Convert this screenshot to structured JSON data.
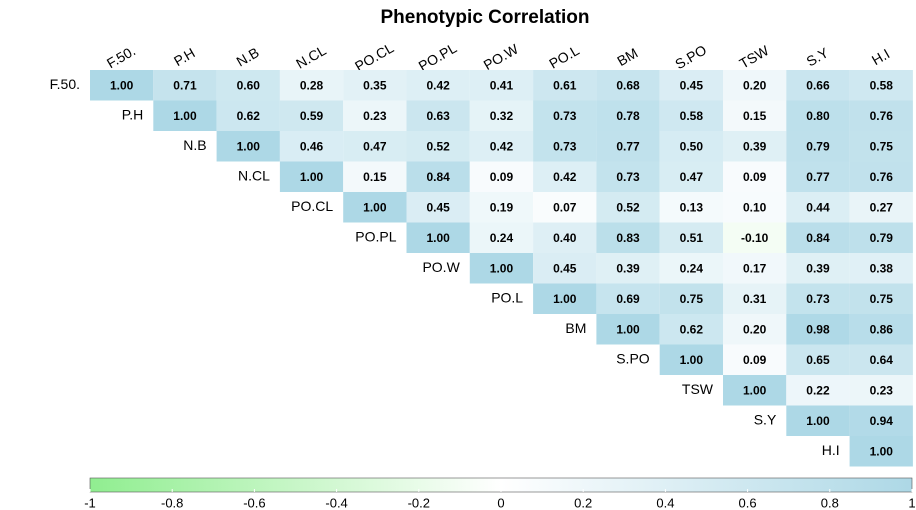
{
  "chart_data": {
    "type": "heatmap",
    "title": "Phenotypic Correlation",
    "categories": [
      "F.50.",
      "P.H",
      "N.B",
      "N.CL",
      "PO.CL",
      "PO.PL",
      "PO.W",
      "PO.L",
      "BM",
      "S.PO",
      "TSW",
      "S.Y",
      "H.I"
    ],
    "values": [
      [
        1,
        0.71,
        0.6,
        0.28,
        0.35,
        0.42,
        0.41,
        0.61,
        0.68,
        0.45,
        0.2,
        0.66,
        0.58
      ],
      [
        null,
        1,
        0.62,
        0.59,
        0.23,
        0.63,
        0.32,
        0.73,
        0.78,
        0.58,
        0.15,
        0.8,
        0.76
      ],
      [
        null,
        null,
        1,
        0.46,
        0.47,
        0.52,
        0.42,
        0.73,
        0.77,
        0.5,
        0.39,
        0.79,
        0.75
      ],
      [
        null,
        null,
        null,
        1,
        0.15,
        0.84,
        0.09,
        0.42,
        0.73,
        0.47,
        0.09,
        0.77,
        0.76
      ],
      [
        null,
        null,
        null,
        null,
        1,
        0.45,
        0.19,
        0.07,
        0.52,
        0.13,
        0.1,
        0.44,
        0.27
      ],
      [
        null,
        null,
        null,
        null,
        null,
        1,
        0.24,
        0.4,
        0.83,
        0.51,
        -0.1,
        0.84,
        0.79
      ],
      [
        null,
        null,
        null,
        null,
        null,
        null,
        1,
        0.45,
        0.39,
        0.24,
        0.17,
        0.39,
        0.38
      ],
      [
        null,
        null,
        null,
        null,
        null,
        null,
        null,
        1,
        0.69,
        0.75,
        0.31,
        0.73,
        0.75
      ],
      [
        null,
        null,
        null,
        null,
        null,
        null,
        null,
        null,
        1,
        0.62,
        0.2,
        0.98,
        0.86
      ],
      [
        null,
        null,
        null,
        null,
        null,
        null,
        null,
        null,
        null,
        1,
        0.09,
        0.65,
        0.64
      ],
      [
        null,
        null,
        null,
        null,
        null,
        null,
        null,
        null,
        null,
        null,
        1,
        0.22,
        0.23
      ],
      [
        null,
        null,
        null,
        null,
        null,
        null,
        null,
        null,
        null,
        null,
        null,
        1,
        0.94
      ],
      [
        null,
        null,
        null,
        null,
        null,
        null,
        null,
        null,
        null,
        null,
        null,
        null,
        1
      ]
    ],
    "value_labels": [
      [
        "1.00",
        "0.71",
        "0.60",
        "0.28",
        "0.35",
        "0.42",
        "0.41",
        "0.61",
        "0.68",
        "0.45",
        "0.20",
        "0.66",
        "0.58"
      ],
      [
        null,
        "1.00",
        "0.62",
        "0.59",
        "0.23",
        "0.63",
        "0.32",
        "0.73",
        "0.78",
        "0.58",
        "0.15",
        "0.80",
        "0.76"
      ],
      [
        null,
        null,
        "1.00",
        "0.46",
        "0.47",
        "0.52",
        "0.42",
        "0.73",
        "0.77",
        "0.50",
        "0.39",
        "0.79",
        "0.75"
      ],
      [
        null,
        null,
        null,
        "1.00",
        "0.15",
        "0.84",
        "0.09",
        "0.42",
        "0.73",
        "0.47",
        "0.09",
        "0.77",
        "0.76"
      ],
      [
        null,
        null,
        null,
        null,
        "1.00",
        "0.45",
        "0.19",
        "0.07",
        "0.52",
        "0.13",
        "0.10",
        "0.44",
        "0.27"
      ],
      [
        null,
        null,
        null,
        null,
        null,
        "1.00",
        "0.24",
        "0.40",
        "0.83",
        "0.51",
        "-0.10",
        "0.84",
        "0.79"
      ],
      [
        null,
        null,
        null,
        null,
        null,
        null,
        "1.00",
        "0.45",
        "0.39",
        "0.24",
        "0.17",
        "0.39",
        "0.38"
      ],
      [
        null,
        null,
        null,
        null,
        null,
        null,
        null,
        "1.00",
        "0.69",
        "0.75",
        "0.31",
        "0.73",
        "0.75"
      ],
      [
        null,
        null,
        null,
        null,
        null,
        null,
        null,
        null,
        "1.00",
        "0.62",
        "0.20",
        "0.98",
        "0.86"
      ],
      [
        null,
        null,
        null,
        null,
        null,
        null,
        null,
        null,
        null,
        "1.00",
        "0.09",
        "0.65",
        "0.64"
      ],
      [
        null,
        null,
        null,
        null,
        null,
        null,
        null,
        null,
        null,
        null,
        "1.00",
        "0.22",
        "0.23"
      ],
      [
        null,
        null,
        null,
        null,
        null,
        null,
        null,
        null,
        null,
        null,
        null,
        "1.00",
        "0.94"
      ],
      [
        null,
        null,
        null,
        null,
        null,
        null,
        null,
        null,
        null,
        null,
        null,
        null,
        "1.00"
      ]
    ],
    "colors": [
      "#90ee90",
      "#ffffff",
      "#add8e6"
    ],
    "clim": [
      -1,
      1
    ],
    "cticks": [
      -1,
      -0.8,
      -0.6,
      -0.4,
      -0.2,
      0,
      0.2,
      0.4,
      0.6,
      0.8,
      1
    ]
  }
}
